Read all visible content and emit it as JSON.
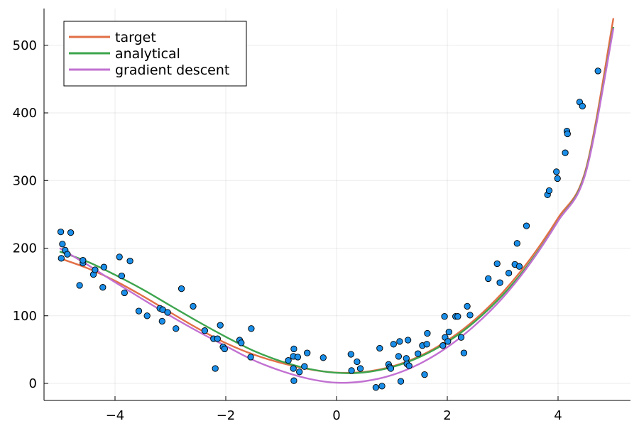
{
  "chart_data": {
    "type": "scatter",
    "title": "",
    "xlabel": "",
    "ylabel": "",
    "xlim": [
      -5.2,
      5.3
    ],
    "ylim": [
      -25,
      555
    ],
    "xticks": [
      -4,
      -2,
      0,
      2,
      4
    ],
    "yticks": [
      0,
      100,
      200,
      300,
      400,
      500
    ],
    "xtick_labels": [
      "−4",
      "−2",
      "0",
      "2",
      "4"
    ],
    "ytick_labels": [
      "0",
      "100",
      "200",
      "300",
      "400",
      "500"
    ],
    "grid": true,
    "legend_position": "top-left",
    "points": {
      "color": "#1a8ee8",
      "data": [
        [
          -4.98,
          224
        ],
        [
          -4.95,
          206
        ],
        [
          -4.97,
          185
        ],
        [
          -4.9,
          197
        ],
        [
          -4.86,
          191
        ],
        [
          -4.8,
          223
        ],
        [
          -4.64,
          145
        ],
        [
          -4.58,
          178
        ],
        [
          -4.58,
          182
        ],
        [
          -4.39,
          161
        ],
        [
          -4.36,
          168
        ],
        [
          -4.22,
          142
        ],
        [
          -4.2,
          172
        ],
        [
          -3.92,
          187
        ],
        [
          -3.88,
          159
        ],
        [
          -3.83,
          134
        ],
        [
          -3.73,
          181
        ],
        [
          -3.57,
          107
        ],
        [
          -3.42,
          100
        ],
        [
          -3.19,
          111
        ],
        [
          -3.14,
          109
        ],
        [
          -3.15,
          92
        ],
        [
          -3.05,
          105
        ],
        [
          -2.9,
          81
        ],
        [
          -2.8,
          140
        ],
        [
          -2.59,
          114
        ],
        [
          -2.38,
          78
        ],
        [
          -2.22,
          66
        ],
        [
          -2.19,
          22
        ],
        [
          -2.15,
          66
        ],
        [
          -2.1,
          86
        ],
        [
          -2.05,
          54
        ],
        [
          -2.02,
          51
        ],
        [
          -1.75,
          64
        ],
        [
          -1.72,
          60
        ],
        [
          -1.55,
          39
        ],
        [
          -1.54,
          81
        ],
        [
          -0.87,
          34
        ],
        [
          -0.78,
          40
        ],
        [
          -0.77,
          51
        ],
        [
          -0.78,
          22
        ],
        [
          -0.77,
          4
        ],
        [
          -0.7,
          39
        ],
        [
          -0.67,
          17
        ],
        [
          -0.58,
          25
        ],
        [
          -0.53,
          45
        ],
        [
          -0.24,
          38
        ],
        [
          0.26,
          43
        ],
        [
          0.27,
          19
        ],
        [
          0.37,
          32
        ],
        [
          0.43,
          22
        ],
        [
          0.71,
          -6
        ],
        [
          0.78,
          52
        ],
        [
          0.82,
          -4
        ],
        [
          0.94,
          28
        ],
        [
          0.96,
          24
        ],
        [
          0.98,
          22
        ],
        [
          1.03,
          58
        ],
        [
          1.12,
          40
        ],
        [
          1.14,
          62
        ],
        [
          1.16,
          3
        ],
        [
          1.26,
          37
        ],
        [
          1.27,
          29
        ],
        [
          1.29,
          64
        ],
        [
          1.31,
          26
        ],
        [
          1.47,
          44
        ],
        [
          1.55,
          56
        ],
        [
          1.59,
          13
        ],
        [
          1.63,
          58
        ],
        [
          1.64,
          74
        ],
        [
          1.92,
          56
        ],
        [
          1.95,
          99
        ],
        [
          1.96,
          68
        ],
        [
          2.01,
          62
        ],
        [
          2.03,
          76
        ],
        [
          2.15,
          99
        ],
        [
          2.19,
          99
        ],
        [
          2.25,
          68
        ],
        [
          2.3,
          45
        ],
        [
          2.36,
          114
        ],
        [
          2.41,
          101
        ],
        [
          2.74,
          155
        ],
        [
          2.9,
          177
        ],
        [
          2.95,
          149
        ],
        [
          3.11,
          163
        ],
        [
          3.22,
          176
        ],
        [
          3.26,
          207
        ],
        [
          3.3,
          173
        ],
        [
          3.43,
          233
        ],
        [
          3.81,
          279
        ],
        [
          3.84,
          285
        ],
        [
          3.97,
          313
        ],
        [
          3.99,
          303
        ],
        [
          4.13,
          341
        ],
        [
          4.16,
          373
        ],
        [
          4.17,
          369
        ],
        [
          4.39,
          416
        ],
        [
          4.44,
          410
        ],
        [
          4.72,
          462
        ]
      ]
    },
    "series": [
      {
        "name": "target",
        "color": "#e26f46",
        "x": [
          -5,
          -4.5,
          -4,
          -3.5,
          -3,
          -2.5,
          -2,
          -1.5,
          -1,
          -0.5,
          0,
          0.5,
          1,
          1.5,
          2,
          2.5,
          3,
          3.5,
          4,
          4.5,
          5
        ],
        "y": [
          185,
          170.4,
          151.7,
          129.2,
          104.9,
          81.0,
          59.6,
          42.7,
          30.2,
          21.1,
          16.0,
          17.0,
          25.0,
          40.3,
          63.3,
          94.5,
          134.5,
          184.3,
          244.6,
          316.3,
          540
        ]
      },
      {
        "name": "analytical",
        "color": "#3da44d",
        "x": [
          -5,
          -4.5,
          -4,
          -3.5,
          -3,
          -2.5,
          -2,
          -1.5,
          -1,
          -0.5,
          0,
          0.5,
          1,
          1.5,
          2,
          2.5,
          3,
          3.5,
          4,
          4.5,
          5
        ],
        "y": [
          195,
          180.1,
          160.5,
          138.9,
          115.0,
          91.3,
          68.9,
          48.3,
          32.7,
          21.5,
          15.6,
          16.3,
          24.0,
          39.0,
          61.2,
          91.5,
          130.6,
          179.7,
          240.4,
          313.5,
          527
        ]
      },
      {
        "name": "gradient descent",
        "color": "#c271d2",
        "x": [
          -5,
          -4.5,
          -4,
          -3.5,
          -3,
          -2.5,
          -2,
          -1.5,
          -1,
          -0.5,
          0,
          0.5,
          1,
          1.5,
          2,
          2.5,
          3,
          3.5,
          4,
          4.5,
          5
        ],
        "y": [
          200,
          175.5,
          149.6,
          124.4,
          99.8,
          76.6,
          55.3,
          34.3,
          18.5,
          6.8,
          1.0,
          3.2,
          12.3,
          29.0,
          53.5,
          86.0,
          126.6,
          177.8,
          240.0,
          311.5,
          525
        ]
      }
    ]
  }
}
